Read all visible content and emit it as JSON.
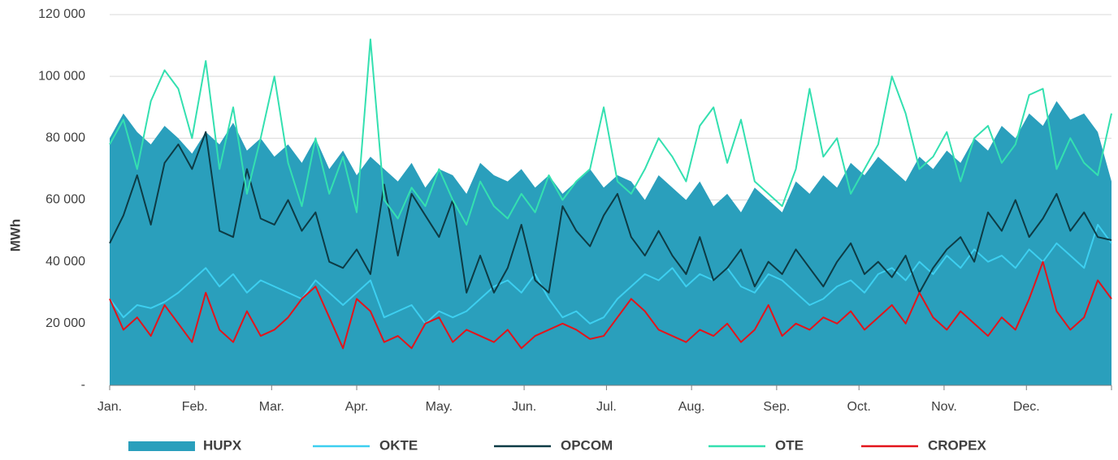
{
  "chart_data": {
    "type": "line",
    "ylabel": "MWh",
    "grid": true,
    "legend": "bottom",
    "x": [
      0,
      5,
      10,
      15,
      20,
      25,
      30,
      35,
      40,
      45,
      50,
      55,
      60,
      65,
      70,
      75,
      80,
      85,
      90,
      95,
      100,
      105,
      110,
      115,
      120,
      125,
      130,
      135,
      140,
      145,
      150,
      155,
      160,
      165,
      170,
      175,
      180,
      185,
      190,
      195,
      200,
      205,
      210,
      215,
      220,
      225,
      230,
      235,
      240,
      245,
      250,
      255,
      260,
      265,
      270,
      275,
      280,
      285,
      290,
      295,
      300,
      305,
      310,
      315,
      320,
      325,
      330,
      335,
      340,
      345,
      350,
      355,
      360,
      365
    ],
    "xlim": [
      0,
      365
    ],
    "xticks": [
      {
        "value": 0,
        "label": "Jan."
      },
      {
        "value": 31,
        "label": "Feb."
      },
      {
        "value": 59,
        "label": "Mar."
      },
      {
        "value": 90,
        "label": "Apr."
      },
      {
        "value": 120,
        "label": "May."
      },
      {
        "value": 151,
        "label": "Jun."
      },
      {
        "value": 181,
        "label": "Jul."
      },
      {
        "value": 212,
        "label": "Aug."
      },
      {
        "value": 243,
        "label": "Sep."
      },
      {
        "value": 273,
        "label": "Oct."
      },
      {
        "value": 304,
        "label": "Nov."
      },
      {
        "value": 334,
        "label": "Dec."
      }
    ],
    "ylim": [
      0,
      120000
    ],
    "yticks": [
      {
        "value": 0,
        "label": "-"
      },
      {
        "value": 20000,
        "label": "20 000"
      },
      {
        "value": 40000,
        "label": "40 000"
      },
      {
        "value": 60000,
        "label": "60 000"
      },
      {
        "value": 80000,
        "label": "80 000"
      },
      {
        "value": 100000,
        "label": "100 000"
      },
      {
        "value": 120000,
        "label": "120 000"
      }
    ],
    "series": [
      {
        "name": "HUPX",
        "type": "area",
        "color": "#2a9fbc",
        "values": [
          80000,
          88000,
          82000,
          78000,
          84000,
          80000,
          75000,
          82000,
          78000,
          85000,
          76000,
          80000,
          74000,
          78000,
          72000,
          80000,
          70000,
          76000,
          68000,
          74000,
          70000,
          66000,
          72000,
          64000,
          70000,
          68000,
          62000,
          72000,
          68000,
          66000,
          70000,
          64000,
          68000,
          62000,
          66000,
          70000,
          64000,
          68000,
          66000,
          60000,
          68000,
          64000,
          60000,
          66000,
          58000,
          62000,
          56000,
          64000,
          60000,
          56000,
          66000,
          62000,
          68000,
          64000,
          72000,
          68000,
          74000,
          70000,
          66000,
          74000,
          70000,
          76000,
          72000,
          80000,
          76000,
          84000,
          80000,
          88000,
          84000,
          92000,
          86000,
          88000,
          82000,
          66000
        ]
      },
      {
        "name": "OKTE",
        "type": "line",
        "color": "#3dcff0",
        "values": [
          28000,
          22000,
          26000,
          25000,
          27000,
          30000,
          34000,
          38000,
          32000,
          36000,
          30000,
          34000,
          32000,
          30000,
          28000,
          34000,
          30000,
          26000,
          30000,
          34000,
          22000,
          24000,
          26000,
          20000,
          24000,
          22000,
          24000,
          28000,
          32000,
          34000,
          30000,
          36000,
          28000,
          22000,
          24000,
          20000,
          22000,
          28000,
          32000,
          36000,
          34000,
          38000,
          32000,
          36000,
          34000,
          38000,
          32000,
          30000,
          36000,
          34000,
          30000,
          26000,
          28000,
          32000,
          34000,
          30000,
          36000,
          38000,
          34000,
          40000,
          36000,
          42000,
          38000,
          44000,
          40000,
          42000,
          38000,
          44000,
          40000,
          46000,
          42000,
          38000,
          52000,
          46000
        ]
      },
      {
        "name": "OPCOM",
        "type": "line",
        "color": "#0d3b45",
        "values": [
          46000,
          55000,
          68000,
          52000,
          72000,
          78000,
          70000,
          82000,
          50000,
          48000,
          70000,
          54000,
          52000,
          60000,
          50000,
          56000,
          40000,
          38000,
          44000,
          36000,
          65000,
          42000,
          62000,
          55000,
          48000,
          60000,
          30000,
          42000,
          30000,
          38000,
          52000,
          34000,
          30000,
          58000,
          50000,
          45000,
          55000,
          62000,
          48000,
          42000,
          50000,
          42000,
          36000,
          48000,
          34000,
          38000,
          44000,
          32000,
          40000,
          36000,
          44000,
          38000,
          32000,
          40000,
          46000,
          36000,
          40000,
          35000,
          42000,
          30000,
          38000,
          44000,
          48000,
          40000,
          56000,
          50000,
          60000,
          48000,
          54000,
          62000,
          50000,
          56000,
          48000,
          47000
        ]
      },
      {
        "name": "OTE",
        "type": "line",
        "color": "#34e0b0",
        "values": [
          78000,
          86000,
          70000,
          92000,
          102000,
          96000,
          80000,
          105000,
          70000,
          90000,
          62000,
          80000,
          100000,
          72000,
          58000,
          80000,
          62000,
          74000,
          56000,
          112000,
          60000,
          54000,
          64000,
          58000,
          70000,
          60000,
          52000,
          66000,
          58000,
          54000,
          62000,
          56000,
          68000,
          60000,
          66000,
          70000,
          90000,
          66000,
          62000,
          70000,
          80000,
          74000,
          66000,
          84000,
          90000,
          72000,
          86000,
          66000,
          62000,
          58000,
          70000,
          96000,
          74000,
          80000,
          62000,
          70000,
          78000,
          100000,
          88000,
          70000,
          74000,
          82000,
          66000,
          80000,
          84000,
          72000,
          78000,
          94000,
          96000,
          70000,
          80000,
          72000,
          68000,
          88000
        ]
      },
      {
        "name": "CROPEX",
        "type": "line",
        "color": "#e3141b",
        "values": [
          28000,
          18000,
          22000,
          16000,
          26000,
          20000,
          14000,
          30000,
          18000,
          14000,
          24000,
          16000,
          18000,
          22000,
          28000,
          32000,
          22000,
          12000,
          28000,
          24000,
          14000,
          16000,
          12000,
          20000,
          22000,
          14000,
          18000,
          16000,
          14000,
          18000,
          12000,
          16000,
          18000,
          20000,
          18000,
          15000,
          16000,
          22000,
          28000,
          24000,
          18000,
          16000,
          14000,
          18000,
          16000,
          20000,
          14000,
          18000,
          26000,
          16000,
          20000,
          18000,
          22000,
          20000,
          24000,
          18000,
          22000,
          26000,
          20000,
          30000,
          22000,
          18000,
          24000,
          20000,
          16000,
          22000,
          18000,
          28000,
          40000,
          24000,
          18000,
          22000,
          34000,
          28000
        ]
      }
    ]
  }
}
